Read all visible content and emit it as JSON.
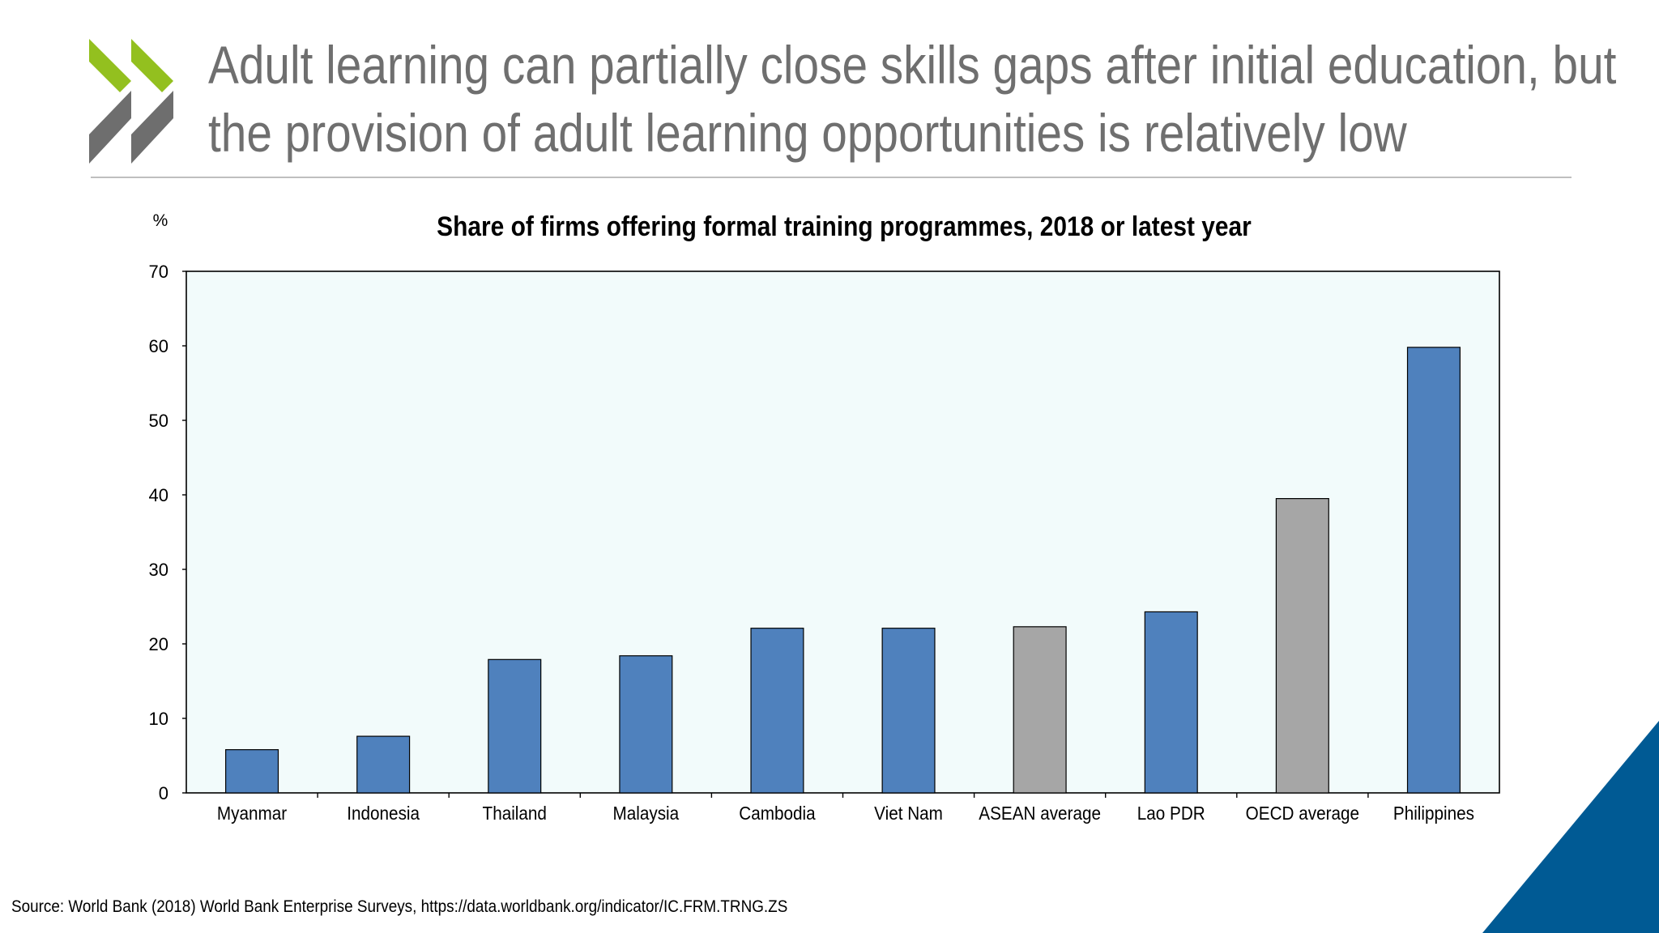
{
  "slide": {
    "title_line1": "Adult learning can partially close skills gaps after initial education, but",
    "title_line2": "the provision of adult learning opportunities is relatively low",
    "source": "Source: World Bank (2018) World Bank Enterprise Surveys, https://data.worldbank.org/indicator/IC.FRM.TRNG.ZS"
  },
  "colors": {
    "country_bar": "#4f81bd",
    "average_bar": "#a6a6a6",
    "plot_background": "#f2fbfb",
    "logo_green": "#93c01f",
    "logo_grey": "#6e6e6e",
    "corner_blue": "#005a94"
  },
  "icons": {
    "logo": "oecd-chevron-logo",
    "corner": "corner-triangle-decoration"
  },
  "chart_data": {
    "type": "bar",
    "title": "Share of firms offering formal training programmes, 2018 or latest year",
    "ylabel": "%",
    "xlabel": "",
    "ylim": [
      0,
      70
    ],
    "yticks": [
      0,
      10,
      20,
      30,
      40,
      50,
      60,
      70
    ],
    "grid": false,
    "legend": "none",
    "categories": [
      "Myanmar",
      "Indonesia",
      "Thailand",
      "Malaysia",
      "Cambodia",
      "Viet Nam",
      "ASEAN average",
      "Lao PDR",
      "OECD average",
      "Philippines"
    ],
    "values": [
      5.8,
      7.6,
      17.9,
      18.4,
      22.1,
      22.1,
      22.3,
      24.3,
      39.5,
      59.8
    ],
    "bar_kinds": [
      "country",
      "country",
      "country",
      "country",
      "country",
      "country",
      "average",
      "country",
      "average",
      "country"
    ]
  }
}
